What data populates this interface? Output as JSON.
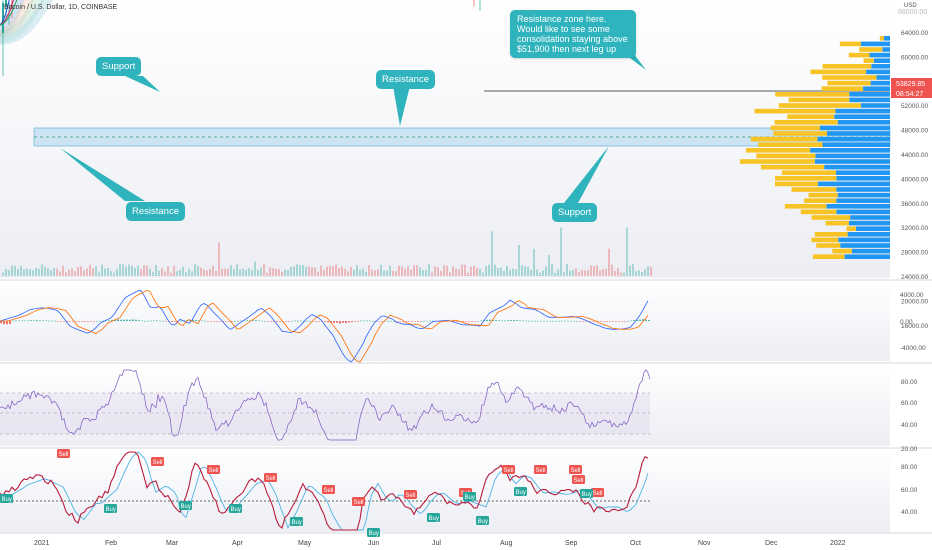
{
  "header": {
    "title": "Bitcoin / U.S. Dollar, 1D, COINBASE",
    "currency": "USD"
  },
  "annotations": {
    "main_note": "Resistance zone here.\nWould like to see some consolidation staying above $51,900 then next leg up",
    "support_top": "Support",
    "resistance_left": "Resistance",
    "resistance_mid": "Resistance",
    "support_right": "Support"
  },
  "price_axis": {
    "labels": [
      "64000.00",
      "60000.00",
      "56000.00",
      "52000.00",
      "48000.00",
      "44000.00",
      "40000.00",
      "36000.00",
      "32000.00",
      "28000.00",
      "24000.00",
      "20000.00",
      "16000.00"
    ],
    "top_faded": "68000.00",
    "current_price": "53829.85",
    "countdown": "08:54:27"
  },
  "macd_axis": {
    "labels": [
      "4000.00",
      "0.00",
      "-4000.00"
    ]
  },
  "rsi_axis": {
    "labels": [
      "80.00",
      "60.00",
      "40.00",
      "20.00"
    ]
  },
  "stoch_axis": {
    "labels": [
      "80.00",
      "60.00",
      "40.00"
    ]
  },
  "time_axis": {
    "labels": [
      "2021",
      "Feb",
      "Mar",
      "Apr",
      "May",
      "Jun",
      "Jul",
      "Aug",
      "Sep",
      "Oct",
      "Nov",
      "Dec",
      "2022"
    ]
  },
  "signals": [
    {
      "label": "Sell",
      "kind": "sell"
    },
    {
      "label": "Sell",
      "kind": "sell"
    },
    {
      "label": "Sell",
      "kind": "sell"
    },
    {
      "label": "Sell",
      "kind": "sell"
    },
    {
      "label": "Sell",
      "kind": "sell"
    },
    {
      "label": "Sell",
      "kind": "sell"
    },
    {
      "label": "Sell",
      "kind": "sell"
    },
    {
      "label": "Sell",
      "kind": "sell"
    },
    {
      "label": "Sell",
      "kind": "sell"
    },
    {
      "label": "Sell",
      "kind": "sell"
    },
    {
      "label": "Sell",
      "kind": "sell"
    },
    {
      "label": "Sell",
      "kind": "sell"
    },
    {
      "label": "Sell",
      "kind": "sell"
    },
    {
      "label": "Buy",
      "kind": "buy"
    },
    {
      "label": "Buy",
      "kind": "buy"
    },
    {
      "label": "Buy",
      "kind": "buy"
    },
    {
      "label": "Buy",
      "kind": "buy"
    },
    {
      "label": "Buy",
      "kind": "buy"
    },
    {
      "label": "Buy",
      "kind": "buy"
    },
    {
      "label": "Buy",
      "kind": "buy"
    },
    {
      "label": "Buy",
      "kind": "buy"
    },
    {
      "label": "Buy",
      "kind": "buy"
    },
    {
      "label": "Buy",
      "kind": "buy"
    },
    {
      "label": "Buy",
      "kind": "buy"
    }
  ],
  "colors": {
    "up": "#26a69a",
    "down": "#ef5350",
    "accent": "#2fb3bd",
    "profile_blue": "#2196f3",
    "profile_yellow": "#f7c325"
  }
}
